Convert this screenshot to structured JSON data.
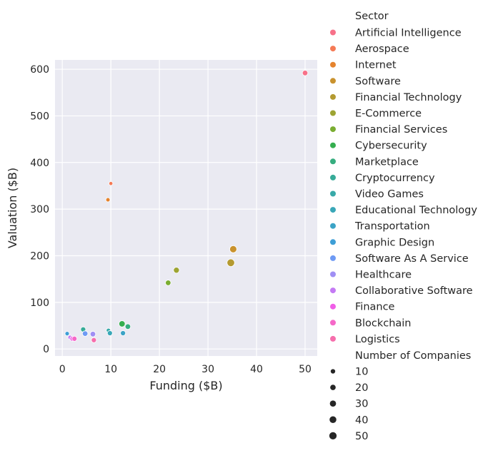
{
  "chart_data": {
    "type": "scatter",
    "title": "",
    "xlabel": "Funding ($B)",
    "ylabel": "Valuation ($B)",
    "xlim": [
      -1.5,
      52.5
    ],
    "ylim": [
      -15,
      620
    ],
    "xticks": [
      0,
      10,
      20,
      30,
      40,
      50
    ],
    "yticks": [
      0,
      100,
      200,
      300,
      400,
      500,
      600
    ],
    "grid": true,
    "legend_placement": "right",
    "hue_title": "Sector",
    "size_title": "Number of Companies",
    "sectors": [
      {
        "name": "Artificial Intelligence",
        "color": "#f77189"
      },
      {
        "name": "Aerospace",
        "color": "#f57a55"
      },
      {
        "name": "Internet",
        "color": "#e5832d"
      },
      {
        "name": "Software",
        "color": "#c9922e"
      },
      {
        "name": "Financial Technology",
        "color": "#b49a31"
      },
      {
        "name": "E-Commerce",
        "color": "#9da432"
      },
      {
        "name": "Financial Services",
        "color": "#7aad31"
      },
      {
        "name": "Cybersecurity",
        "color": "#35ae4f"
      },
      {
        "name": "Marketplace",
        "color": "#36ad7f"
      },
      {
        "name": "Cryptocurrency",
        "color": "#37ab98"
      },
      {
        "name": "Video Games",
        "color": "#38a9a8"
      },
      {
        "name": "Educational Technology",
        "color": "#39a7b8"
      },
      {
        "name": "Transportation",
        "color": "#3ba3c6"
      },
      {
        "name": "Graphic Design",
        "color": "#3e9ed6"
      },
      {
        "name": "Software As A Service",
        "color": "#6e9af4"
      },
      {
        "name": "Healthcare",
        "color": "#9f8ff4"
      },
      {
        "name": "Collaborative Software",
        "color": "#c47af4"
      },
      {
        "name": "Finance",
        "color": "#f05ee7"
      },
      {
        "name": "Blockchain",
        "color": "#f568c8"
      },
      {
        "name": "Logistics",
        "color": "#f66eac"
      }
    ],
    "size_legend": [
      10,
      20,
      30,
      40,
      50
    ],
    "points": [
      {
        "sector": "Artificial Intelligence",
        "x": 50,
        "y": 592,
        "count": 20
      },
      {
        "sector": "Aerospace",
        "x": 10,
        "y": 355,
        "count": 5
      },
      {
        "sector": "Internet",
        "x": 9.4,
        "y": 320,
        "count": 7
      },
      {
        "sector": "Software",
        "x": 35.2,
        "y": 214,
        "count": 45
      },
      {
        "sector": "Financial Technology",
        "x": 34.7,
        "y": 185,
        "count": 55
      },
      {
        "sector": "E-Commerce",
        "x": 23.5,
        "y": 169,
        "count": 25
      },
      {
        "sector": "Financial Services",
        "x": 21.8,
        "y": 142,
        "count": 20
      },
      {
        "sector": "Cybersecurity",
        "x": 12.3,
        "y": 54,
        "count": 30
      },
      {
        "sector": "Marketplace",
        "x": 13.5,
        "y": 48,
        "count": 20
      },
      {
        "sector": "Cryptocurrency",
        "x": 4.3,
        "y": 42,
        "count": 15
      },
      {
        "sector": "Video Games",
        "x": 9.5,
        "y": 40,
        "count": 8
      },
      {
        "sector": "Educational Technology",
        "x": 9.8,
        "y": 34,
        "count": 15
      },
      {
        "sector": "Transportation",
        "x": 12.5,
        "y": 34,
        "count": 15
      },
      {
        "sector": "Graphic Design",
        "x": 1,
        "y": 33,
        "count": 8
      },
      {
        "sector": "Software As A Service",
        "x": 4.7,
        "y": 33,
        "count": 20
      },
      {
        "sector": "Healthcare",
        "x": 6.3,
        "y": 32,
        "count": 20
      },
      {
        "sector": "Collaborative Software",
        "x": 1.6,
        "y": 25,
        "count": 8
      },
      {
        "sector": "Finance",
        "x": 2.1,
        "y": 22,
        "count": 15
      },
      {
        "sector": "Blockchain",
        "x": 2.5,
        "y": 22,
        "count": 15
      },
      {
        "sector": "Logistics",
        "x": 6.5,
        "y": 19,
        "count": 15
      }
    ]
  }
}
